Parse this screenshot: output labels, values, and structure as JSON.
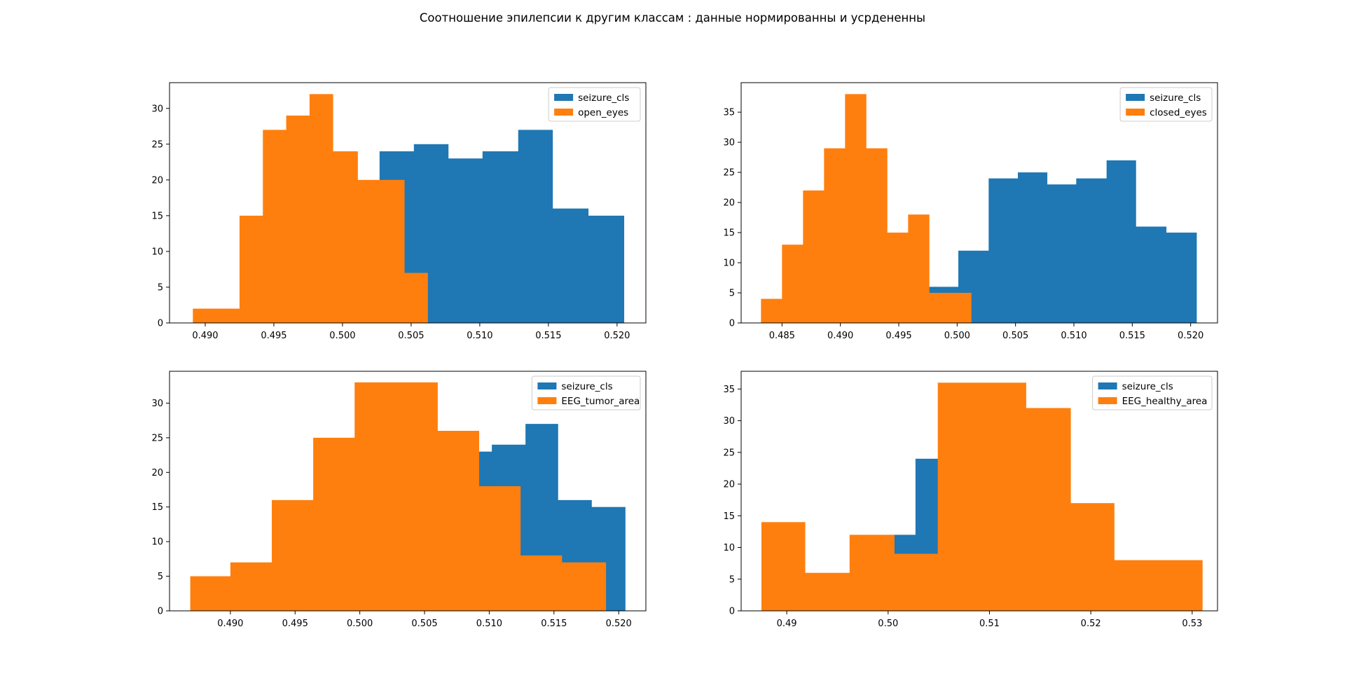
{
  "figure": {
    "title": "Соотношение эпилепсии к другим классам : данные нормированны и усрдененны"
  },
  "colors": {
    "seizure": "#1f77b4",
    "other": "#ff7f0e"
  },
  "chart_data": [
    {
      "type": "histogram",
      "legend_position": "upper right",
      "xlim": [
        0.4874,
        0.5221
      ],
      "ylim": [
        0,
        33.6
      ],
      "xticks": [
        "0.490",
        "0.495",
        "0.500",
        "0.505",
        "0.510",
        "0.515",
        "0.520"
      ],
      "xtick_values": [
        0.49,
        0.495,
        0.5,
        0.505,
        0.51,
        0.515,
        0.52
      ],
      "yticks": [
        0,
        5,
        10,
        15,
        20,
        25,
        30
      ],
      "series": [
        {
          "name": "seizure_cls",
          "color": "#1f77b4",
          "edges": [
            0.5027,
            0.5052,
            0.5077,
            0.5102,
            0.5128,
            0.5153,
            0.5179,
            0.5205
          ],
          "counts": [
            24,
            25,
            23,
            24,
            27,
            16,
            15
          ]
        },
        {
          "name": "open_eyes",
          "color": "#ff7f0e",
          "edges": [
            0.4891,
            0.4908,
            0.4925,
            0.4942,
            0.4959,
            0.4976,
            0.4993,
            0.5011,
            0.5028,
            0.5045,
            0.5062
          ],
          "counts": [
            2,
            2,
            15,
            27,
            29,
            32,
            24,
            20,
            20,
            7
          ]
        }
      ]
    },
    {
      "type": "histogram",
      "legend_position": "upper right",
      "xlim": [
        0.4815,
        0.5223
      ],
      "ylim": [
        0,
        39.9
      ],
      "xticks": [
        "0.485",
        "0.490",
        "0.495",
        "0.500",
        "0.505",
        "0.510",
        "0.515",
        "0.520"
      ],
      "xtick_values": [
        0.485,
        0.49,
        0.495,
        0.5,
        0.505,
        0.51,
        0.515,
        0.52
      ],
      "yticks": [
        0,
        5,
        10,
        15,
        20,
        25,
        30,
        35
      ],
      "series": [
        {
          "name": "seizure_cls",
          "color": "#1f77b4",
          "edges": [
            0.4976,
            0.5001,
            0.5027,
            0.5052,
            0.5077,
            0.5102,
            0.5128,
            0.5153,
            0.5179,
            0.5205
          ],
          "counts": [
            6,
            12,
            24,
            25,
            23,
            24,
            27,
            16,
            15
          ]
        },
        {
          "name": "closed_eyes",
          "color": "#ff7f0e",
          "edges": [
            0.4832,
            0.485,
            0.4868,
            0.4886,
            0.4904,
            0.4922,
            0.494,
            0.4958,
            0.4976,
            0.4994,
            0.5012
          ],
          "counts": [
            4,
            13,
            22,
            29,
            38,
            29,
            15,
            18,
            5,
            5
          ]
        }
      ]
    },
    {
      "type": "histogram",
      "legend_position": "upper right",
      "xlim": [
        0.4853,
        0.5221
      ],
      "ylim": [
        0,
        34.6
      ],
      "xticks": [
        "0.490",
        "0.495",
        "0.500",
        "0.505",
        "0.510",
        "0.515",
        "0.520"
      ],
      "xtick_values": [
        0.49,
        0.495,
        0.5,
        0.505,
        0.51,
        0.515,
        0.52
      ],
      "yticks": [
        0,
        5,
        10,
        15,
        20,
        25,
        30
      ],
      "series": [
        {
          "name": "seizure_cls",
          "color": "#1f77b4",
          "edges": [
            0.5027,
            0.5052,
            0.5077,
            0.5102,
            0.5128,
            0.5153,
            0.5179,
            0.5205
          ],
          "counts": [
            24,
            25,
            23,
            24,
            27,
            16,
            15
          ]
        },
        {
          "name": "EEG_tumor_area",
          "color": "#ff7f0e",
          "edges": [
            0.4869,
            0.49,
            0.4932,
            0.4964,
            0.4996,
            0.5028,
            0.506,
            0.5092,
            0.5124,
            0.5156,
            0.519
          ],
          "counts": [
            5,
            7,
            16,
            25,
            33,
            33,
            26,
            18,
            8,
            7
          ]
        }
      ]
    },
    {
      "type": "histogram",
      "legend_position": "upper right",
      "xlim": [
        0.4855,
        0.5325
      ],
      "ylim": [
        0,
        37.8
      ],
      "xticks": [
        "0.49",
        "0.50",
        "0.51",
        "0.52",
        "0.53"
      ],
      "xtick_values": [
        0.49,
        0.5,
        0.51,
        0.52,
        0.53
      ],
      "yticks": [
        0,
        5,
        10,
        15,
        20,
        25,
        30,
        35
      ],
      "series": [
        {
          "name": "seizure_cls",
          "color": "#1f77b4",
          "edges": [
            0.5001,
            0.5027,
            0.5052
          ],
          "counts": [
            12,
            24
          ]
        },
        {
          "name": "EEG_healthy_area",
          "color": "#ff7f0e",
          "edges": [
            0.4875,
            0.4918,
            0.4962,
            0.5006,
            0.5049,
            0.5093,
            0.5136,
            0.518,
            0.5223,
            0.5267,
            0.531
          ],
          "counts": [
            14,
            6,
            12,
            9,
            36,
            36,
            32,
            17,
            8,
            8
          ]
        }
      ]
    }
  ]
}
